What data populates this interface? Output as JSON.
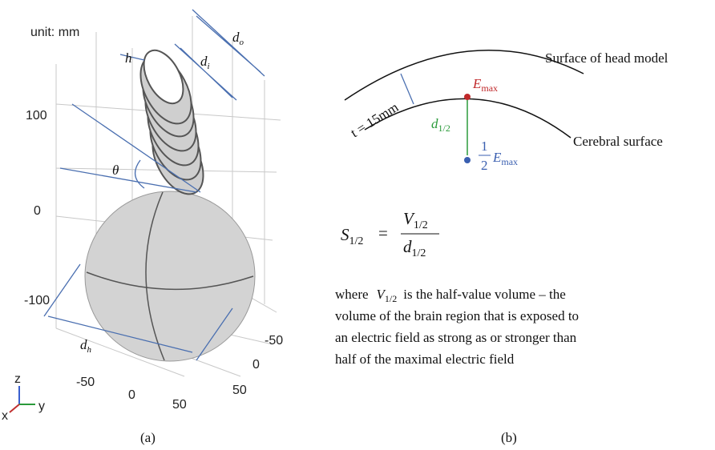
{
  "panel_a": {
    "unit": "unit: mm",
    "z_ticks": [
      "100",
      "0",
      "-100"
    ],
    "front_ticks": [
      "-50",
      "0",
      "50"
    ],
    "side_ticks": [
      "-50",
      "0",
      "50"
    ],
    "dims": {
      "d_o": {
        "base": "d",
        "sub": "o"
      },
      "d_i": {
        "base": "d",
        "sub": "i"
      },
      "h": "h",
      "theta": "θ",
      "d_h": {
        "base": "d",
        "sub": "h"
      }
    },
    "axes": {
      "z": "z",
      "y": "y",
      "x": "x"
    },
    "caption": "(a)"
  },
  "panel_b": {
    "outer_label": "Surface of head model",
    "inner_label": "Cerebral surface",
    "thickness": "t = 15mm",
    "e_max": {
      "base": "E",
      "sub": "max"
    },
    "distance": {
      "base": "d",
      "sub": "1/2"
    },
    "half_e_max": {
      "num": "1",
      "den": "2",
      "base": "E",
      "sub": "max"
    },
    "formula": {
      "lhs": {
        "base": "S",
        "sub": "1/2"
      },
      "equals": "=",
      "numerator": {
        "base": "V",
        "sub": "1/2"
      },
      "denominator": {
        "base": "d",
        "sub": "1/2"
      }
    },
    "text": {
      "before": "where",
      "symbol": {
        "base": "V",
        "sub": "1/2"
      },
      "after": "is the half-value volume – the",
      "lines": [
        "volume of the brain region that is exposed to",
        "an electric field as strong as or stronger than",
        "half of the maximal electric field"
      ]
    },
    "caption": "(b)"
  }
}
